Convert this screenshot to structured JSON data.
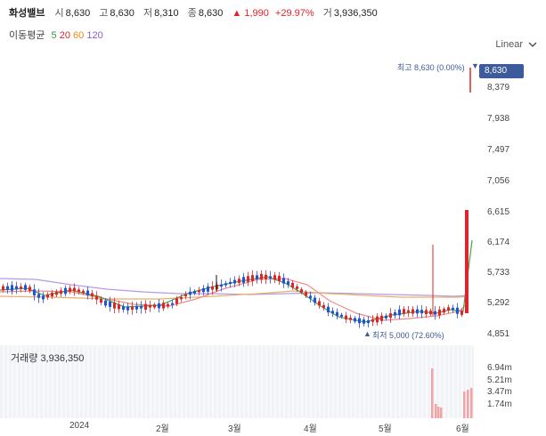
{
  "header": {
    "stock_name": "화성밸브",
    "open_label": "시",
    "open": "8,630",
    "high_label": "고",
    "high": "8,630",
    "low_label": "저",
    "low": "8,310",
    "close_label": "종",
    "close": "8,630",
    "change": "▲ 1,990",
    "change_pct": "+29.97%",
    "volume_label": "거",
    "volume": "3,936,350"
  },
  "moving_average": {
    "label": "이동평균",
    "periods": [
      {
        "value": "5",
        "color": "#2e9c3a"
      },
      {
        "value": "20",
        "color": "#e0242a"
      },
      {
        "value": "60",
        "color": "#e88a1a"
      },
      {
        "value": "120",
        "color": "#8a5ad8"
      }
    ]
  },
  "scale_selector": {
    "label": "Linear"
  },
  "price_axis": {
    "ticks": [
      "8,379",
      "7,938",
      "7,497",
      "7,056",
      "6,615",
      "6,174",
      "5,733",
      "5,292",
      "4,851"
    ],
    "current_price": "8,630"
  },
  "annotations": {
    "high": "최고 8,630 (0.00%)",
    "low": "최저 5,000 (72.60%)"
  },
  "volume": {
    "label": "거래량",
    "value": "3,936,350",
    "ticks": [
      "6.94m",
      "5.21m",
      "3.47m",
      "1.74m"
    ]
  },
  "time_axis": [
    "2024",
    "2월",
    "3월",
    "4월",
    "5월",
    "6월"
  ],
  "colors": {
    "up": "#e0242a",
    "down": "#2152d8",
    "accent": "#3d5a9a"
  }
}
